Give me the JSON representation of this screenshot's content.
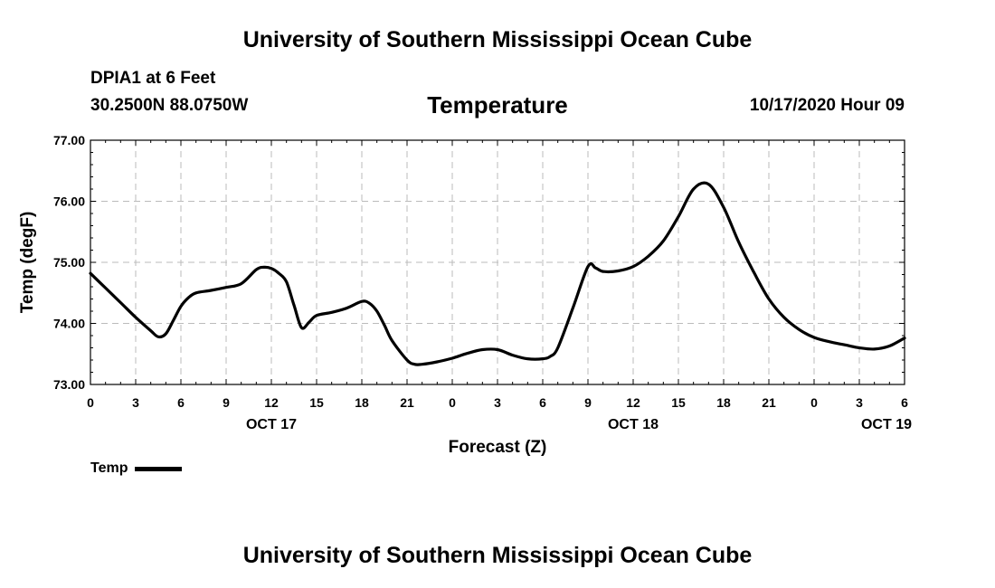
{
  "header": {
    "title": "University of Southern Mississippi Ocean Cube",
    "station": "DPIA1 at 6 Feet",
    "coords": "30.2500N 88.0750W",
    "datetime": "10/17/2020 Hour 09"
  },
  "footer": {
    "title": "University of Southern Mississippi Ocean Cube"
  },
  "chart_data": {
    "type": "line",
    "title": "Temperature",
    "xlabel": "Forecast (Z)",
    "ylabel": "Temp (degF)",
    "ylim": [
      73.0,
      77.0
    ],
    "xlim": [
      0,
      54
    ],
    "x_units": "hours since 2020-10-17 00Z",
    "yticks": [
      "73.00",
      "74.00",
      "75.00",
      "76.00",
      "77.00"
    ],
    "xticks": [
      {
        "x": 0,
        "label": "0"
      },
      {
        "x": 3,
        "label": "3"
      },
      {
        "x": 6,
        "label": "6"
      },
      {
        "x": 9,
        "label": "9"
      },
      {
        "x": 12,
        "label": "12"
      },
      {
        "x": 15,
        "label": "15"
      },
      {
        "x": 18,
        "label": "18"
      },
      {
        "x": 21,
        "label": "21"
      },
      {
        "x": 24,
        "label": "0"
      },
      {
        "x": 27,
        "label": "3"
      },
      {
        "x": 30,
        "label": "6"
      },
      {
        "x": 33,
        "label": "9"
      },
      {
        "x": 36,
        "label": "12"
      },
      {
        "x": 39,
        "label": "15"
      },
      {
        "x": 42,
        "label": "18"
      },
      {
        "x": 45,
        "label": "21"
      },
      {
        "x": 48,
        "label": "0"
      },
      {
        "x": 51,
        "label": "3"
      },
      {
        "x": 54,
        "label": "6"
      }
    ],
    "date_labels": [
      {
        "x": 12,
        "label": "OCT 17"
      },
      {
        "x": 36,
        "label": "OCT 18"
      },
      {
        "x": 52.8,
        "label": "OCT 19"
      }
    ],
    "grid": true,
    "legend_position": "bottom-left",
    "series": [
      {
        "name": "Temp",
        "color": "#000000",
        "x": [
          0,
          1,
          2,
          3,
          4,
          4.5,
          5,
          5.5,
          6,
          6.5,
          7,
          8,
          9,
          10,
          11,
          11.5,
          12,
          12.5,
          13,
          13.5,
          14,
          14.5,
          15,
          16,
          17,
          18,
          18.5,
          19,
          19.5,
          20,
          21,
          21.5,
          22,
          23,
          24,
          25,
          26,
          27,
          28,
          29,
          30,
          30.5,
          31,
          32,
          33,
          33.5,
          34,
          35,
          36,
          37,
          38,
          39,
          40,
          41,
          42,
          43,
          44,
          45,
          46,
          47,
          48,
          49,
          50,
          51,
          52,
          53,
          54
        ],
        "y": [
          74.82,
          74.58,
          74.34,
          74.1,
          73.88,
          73.78,
          73.83,
          74.05,
          74.28,
          74.42,
          74.5,
          74.54,
          74.59,
          74.65,
          74.88,
          74.92,
          74.9,
          74.82,
          74.68,
          74.3,
          73.93,
          74.02,
          74.13,
          74.18,
          74.25,
          74.36,
          74.33,
          74.2,
          73.97,
          73.72,
          73.4,
          73.33,
          73.33,
          73.37,
          73.43,
          73.51,
          73.57,
          73.57,
          73.48,
          73.42,
          73.42,
          73.46,
          73.6,
          74.25,
          74.93,
          74.91,
          74.85,
          74.86,
          74.93,
          75.1,
          75.35,
          75.75,
          76.2,
          76.28,
          75.9,
          75.33,
          74.84,
          74.4,
          74.1,
          73.9,
          73.77,
          73.7,
          73.65,
          73.6,
          73.58,
          73.63,
          73.76
        ]
      }
    ]
  }
}
